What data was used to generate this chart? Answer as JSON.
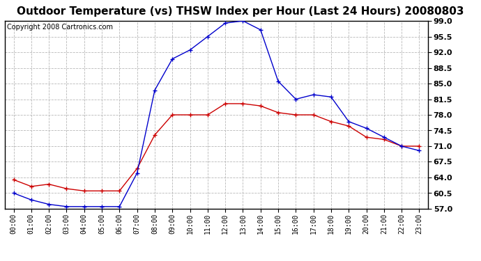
{
  "title": "Outdoor Temperature (vs) THSW Index per Hour (Last 24 Hours) 20080803",
  "copyright": "Copyright 2008 Cartronics.com",
  "hours": [
    "00:00",
    "01:00",
    "02:00",
    "03:00",
    "04:00",
    "05:00",
    "06:00",
    "07:00",
    "08:00",
    "09:00",
    "10:00",
    "11:00",
    "12:00",
    "13:00",
    "14:00",
    "15:00",
    "16:00",
    "17:00",
    "18:00",
    "19:00",
    "20:00",
    "21:00",
    "22:00",
    "23:00"
  ],
  "temp": [
    63.5,
    62.0,
    62.5,
    61.5,
    61.0,
    61.0,
    61.0,
    66.0,
    73.5,
    78.0,
    78.0,
    78.0,
    80.5,
    80.5,
    80.0,
    78.5,
    78.0,
    78.0,
    76.5,
    75.5,
    73.0,
    72.5,
    71.0,
    71.0
  ],
  "thsw": [
    60.5,
    59.0,
    58.0,
    57.5,
    57.5,
    57.5,
    57.5,
    65.0,
    83.5,
    90.5,
    92.5,
    95.5,
    98.5,
    99.0,
    97.0,
    85.5,
    81.5,
    82.5,
    82.0,
    76.5,
    75.0,
    73.0,
    71.0,
    70.0
  ],
  "temp_color": "#cc0000",
  "thsw_color": "#0000cc",
  "ylim": [
    57.0,
    99.0
  ],
  "yticks": [
    57.0,
    60.5,
    64.0,
    67.5,
    71.0,
    74.5,
    78.0,
    81.5,
    85.0,
    88.5,
    92.0,
    95.5,
    99.0
  ],
  "bg_color": "#ffffff",
  "grid_color": "#b0b0b0",
  "title_fontsize": 11,
  "copyright_fontsize": 7,
  "tick_fontsize": 8,
  "xtick_fontsize": 7
}
